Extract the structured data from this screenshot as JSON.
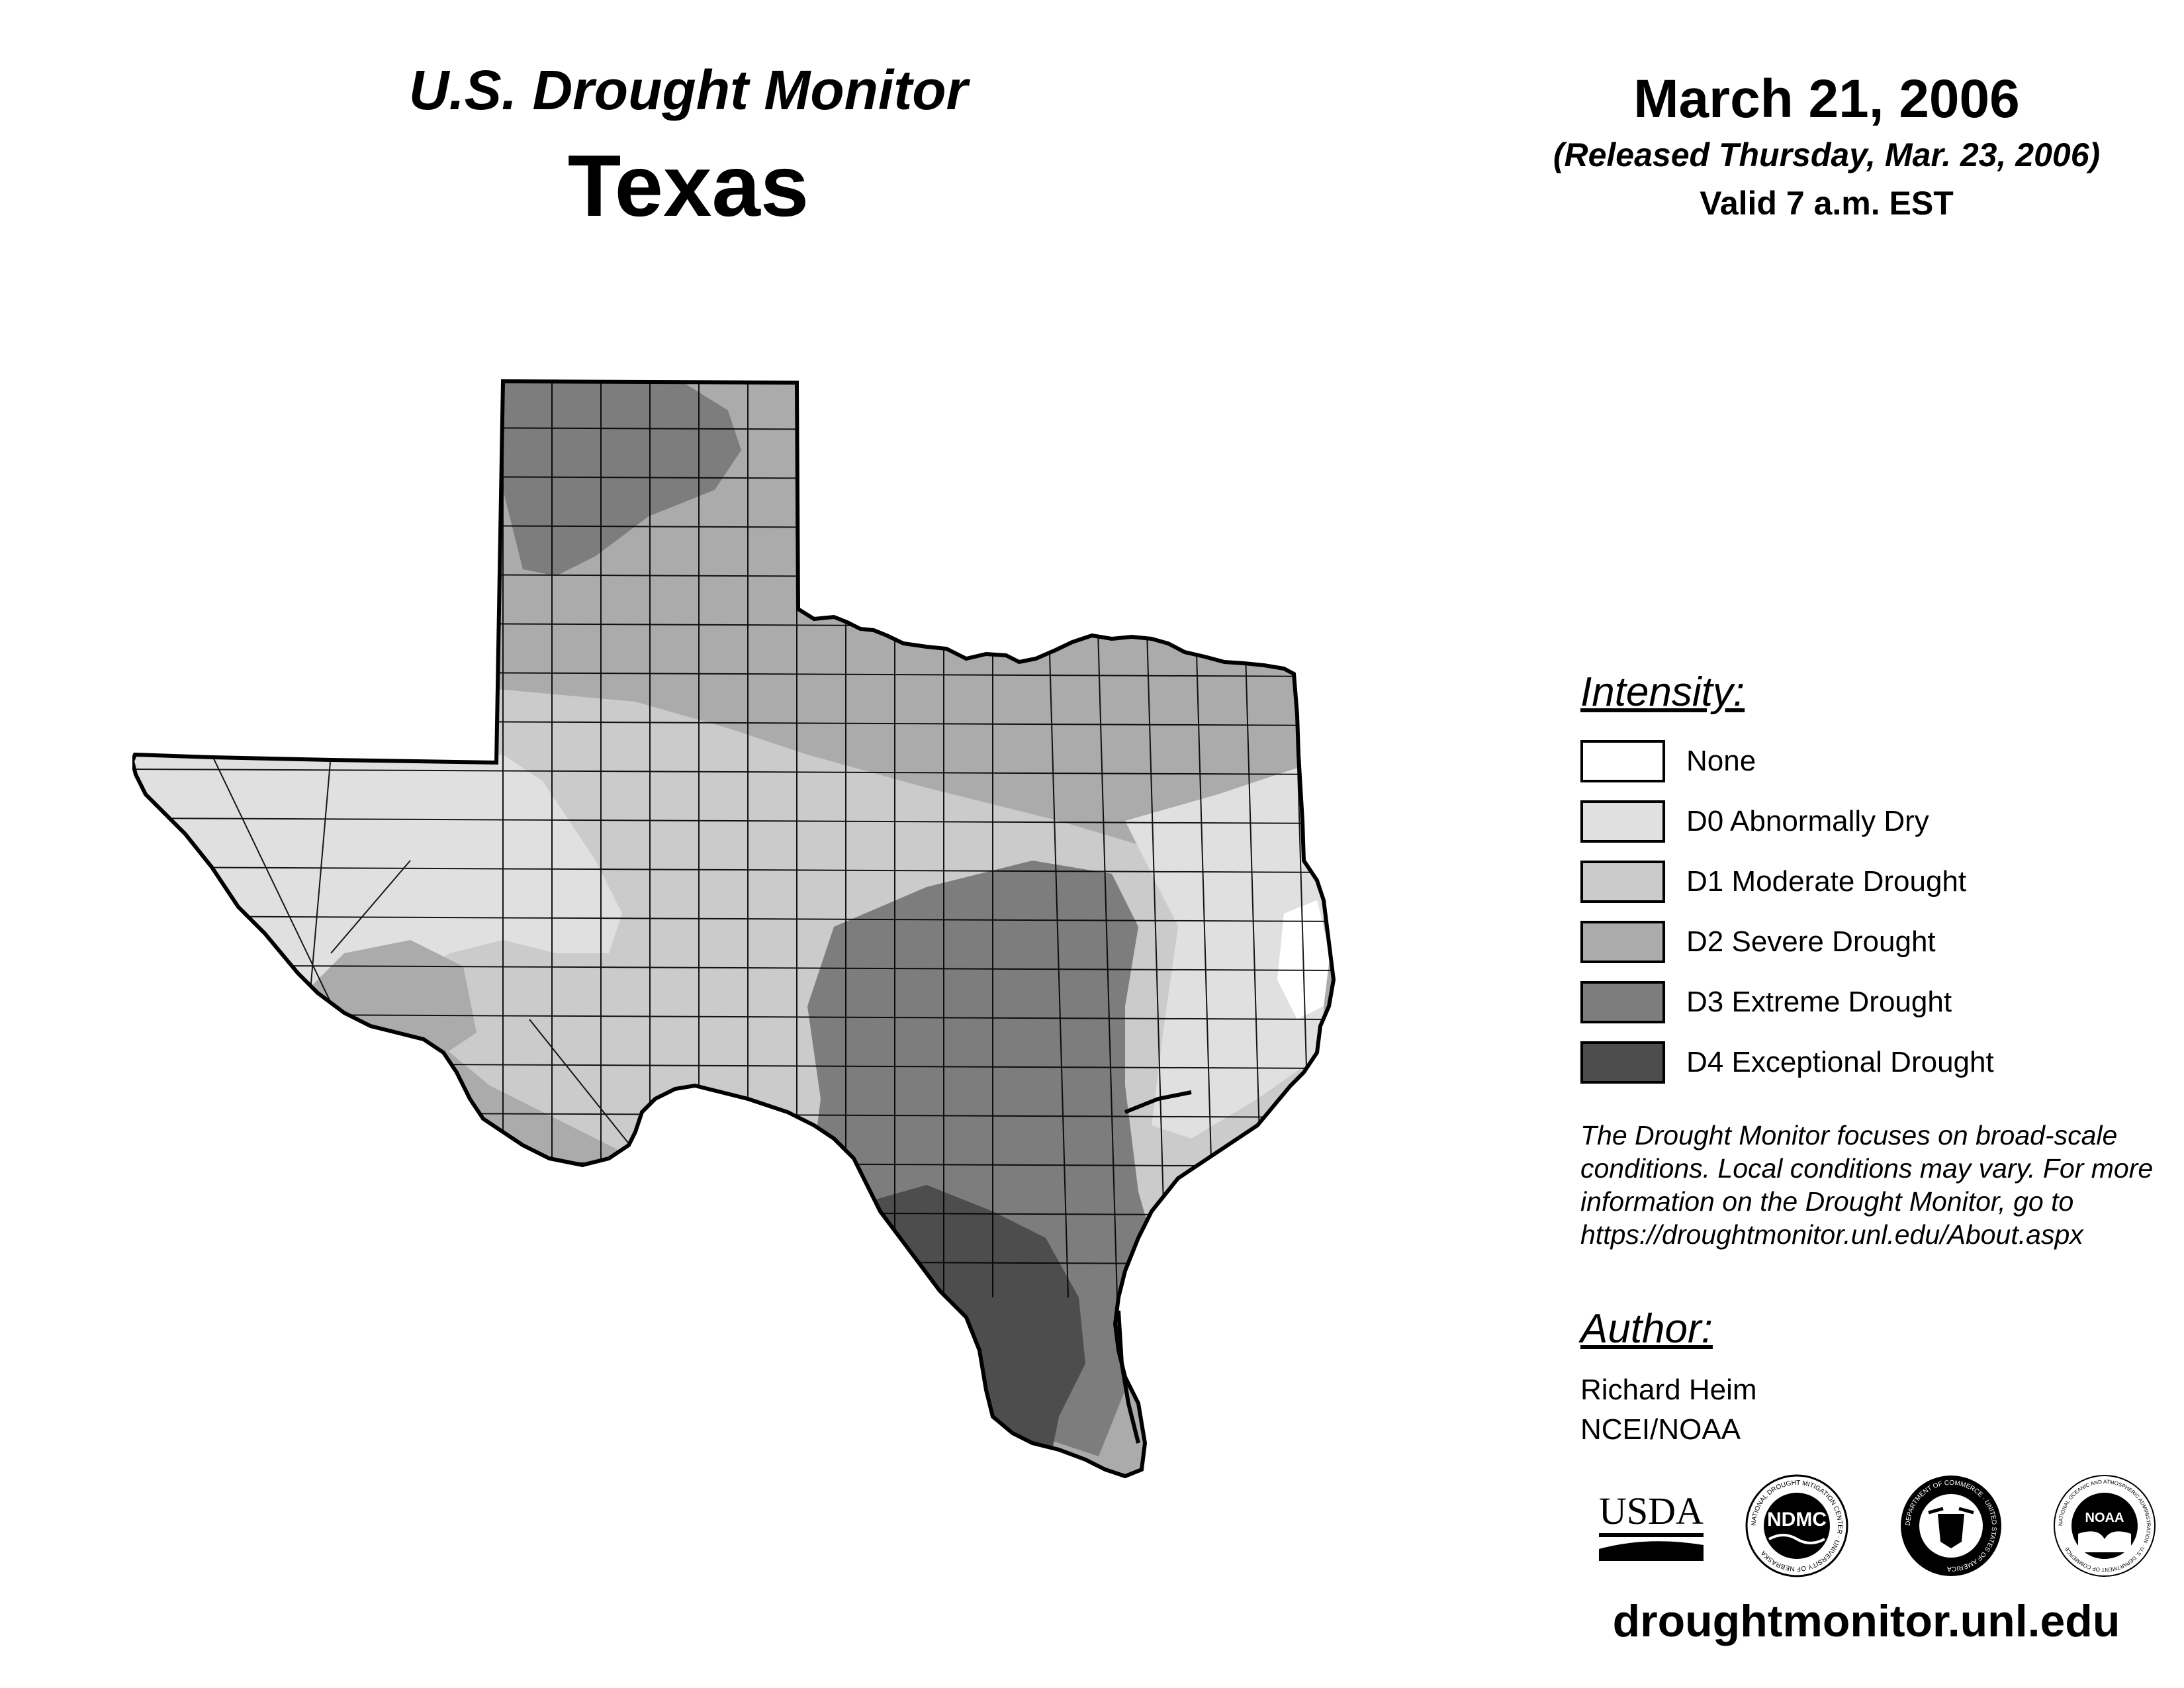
{
  "header": {
    "product": "U.S. Drought Monitor",
    "region": "Texas",
    "date": "March 21, 2006",
    "released": "(Released Thursday, Mar. 23, 2006)",
    "valid": "Valid 7 a.m. EST"
  },
  "legend": {
    "title": "Intensity:",
    "items": [
      {
        "label": "None",
        "color": "#ffffff"
      },
      {
        "label": "D0 Abnormally Dry",
        "color": "#e0e0e0"
      },
      {
        "label": "D1 Moderate Drought",
        "color": "#cbcbcb"
      },
      {
        "label": "D2 Severe Drought",
        "color": "#ababab"
      },
      {
        "label": "D3 Extreme Drought",
        "color": "#7d7d7d"
      },
      {
        "label": "D4 Exceptional Drought",
        "color": "#4d4d4d"
      }
    ]
  },
  "disclaimer": "The Drought Monitor focuses on broad-scale conditions. Local conditions may vary. For more information on the Drought Monitor, go to https://droughtmonitor.unl.edu/About.aspx",
  "author": {
    "heading": "Author:",
    "name": "Richard Heim",
    "org": "NCEI/NOAA"
  },
  "logos": {
    "usda": "USDA",
    "ndmc": "NDMC",
    "ndmc_ring": "NATIONAL DROUGHT MITIGATION CENTER · UNIVERSITY OF NEBRASKA",
    "commerce_ring": "DEPARTMENT OF COMMERCE · UNITED STATES OF AMERICA",
    "noaa": "NOAA",
    "noaa_ring": "NATIONAL OCEANIC AND ATMOSPHERIC ADMINISTRATION · U.S. DEPARTMENT OF COMMERCE"
  },
  "website": "droughtmonitor.unl.edu"
}
